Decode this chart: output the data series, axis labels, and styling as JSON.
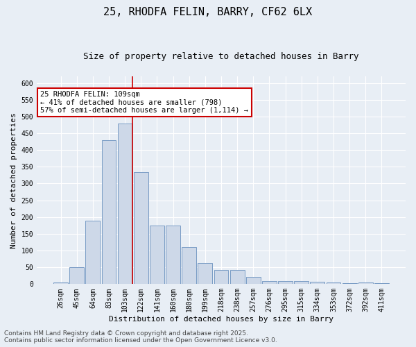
{
  "title_line1": "25, RHODFA FELIN, BARRY, CF62 6LX",
  "title_line2": "Size of property relative to detached houses in Barry",
  "xlabel": "Distribution of detached houses by size in Barry",
  "ylabel": "Number of detached properties",
  "categories": [
    "26sqm",
    "45sqm",
    "64sqm",
    "83sqm",
    "103sqm",
    "122sqm",
    "141sqm",
    "160sqm",
    "180sqm",
    "199sqm",
    "218sqm",
    "238sqm",
    "257sqm",
    "276sqm",
    "295sqm",
    "315sqm",
    "334sqm",
    "353sqm",
    "372sqm",
    "392sqm",
    "411sqm"
  ],
  "values": [
    4,
    50,
    190,
    430,
    480,
    335,
    175,
    175,
    110,
    62,
    42,
    42,
    21,
    10,
    10,
    8,
    7,
    4,
    2,
    4,
    2
  ],
  "bar_facecolor": "#cdd8e8",
  "bar_edgecolor": "#7a9cc5",
  "bg_color": "#e8eef5",
  "grid_color": "#ffffff",
  "annotation_text": "25 RHODFA FELIN: 109sqm\n← 41% of detached houses are smaller (798)\n57% of semi-detached houses are larger (1,114) →",
  "annotation_box_color": "#ffffff",
  "annotation_box_edge": "#cc0000",
  "vline_color": "#cc0000",
  "ylim": [
    0,
    620
  ],
  "yticks": [
    0,
    50,
    100,
    150,
    200,
    250,
    300,
    350,
    400,
    450,
    500,
    550,
    600
  ],
  "footer_line1": "Contains HM Land Registry data © Crown copyright and database right 2025.",
  "footer_line2": "Contains public sector information licensed under the Open Government Licence v3.0.",
  "title_fontsize": 11,
  "subtitle_fontsize": 9,
  "label_fontsize": 8,
  "tick_fontsize": 7,
  "annotation_fontsize": 7.5,
  "footer_fontsize": 6.5
}
